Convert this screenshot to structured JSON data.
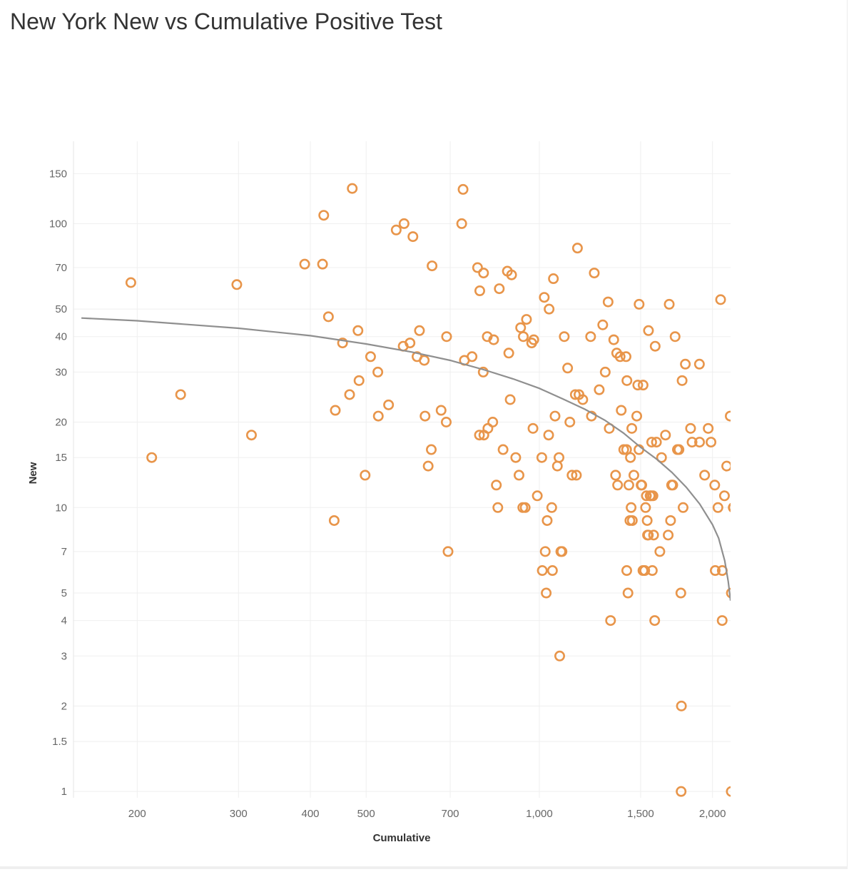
{
  "page": {
    "title": "New York New vs Cumulative Positive Test"
  },
  "chart_data": {
    "type": "scatter",
    "title": "New York New vs Cumulative Positive Test",
    "xlabel": "Cumulative",
    "ylabel": "New",
    "x_scale": "log",
    "y_scale": "log",
    "xlim": [
      155,
      2150
    ],
    "ylim": [
      0.95,
      195
    ],
    "x_ticks": [
      {
        "value": 200,
        "label": "200"
      },
      {
        "value": 300,
        "label": "300"
      },
      {
        "value": 400,
        "label": "400"
      },
      {
        "value": 500,
        "label": "500"
      },
      {
        "value": 700,
        "label": "700"
      },
      {
        "value": 1000,
        "label": "1,000"
      },
      {
        "value": 1500,
        "label": "1,500"
      },
      {
        "value": 2000,
        "label": "2,000"
      }
    ],
    "y_ticks": [
      {
        "value": 1,
        "label": "1"
      },
      {
        "value": 1.5,
        "label": "1.5"
      },
      {
        "value": 2,
        "label": "2"
      },
      {
        "value": 3,
        "label": "3"
      },
      {
        "value": 4,
        "label": "4"
      },
      {
        "value": 5,
        "label": "5"
      },
      {
        "value": 7,
        "label": "7"
      },
      {
        "value": 10,
        "label": "10"
      },
      {
        "value": 15,
        "label": "15"
      },
      {
        "value": 20,
        "label": "20"
      },
      {
        "value": 30,
        "label": "30"
      },
      {
        "value": 40,
        "label": "40"
      },
      {
        "value": 50,
        "label": "50"
      },
      {
        "value": 70,
        "label": "70"
      },
      {
        "value": 100,
        "label": "100"
      },
      {
        "value": 150,
        "label": "150"
      }
    ],
    "grid": true,
    "marker_color": "#e8954a",
    "trend_color": "#8f8f8f",
    "points": [
      [
        195,
        62
      ],
      [
        212,
        15
      ],
      [
        238,
        25
      ],
      [
        298,
        61
      ],
      [
        316,
        18
      ],
      [
        391,
        72
      ],
      [
        420,
        72
      ],
      [
        422,
        107
      ],
      [
        430,
        47
      ],
      [
        440,
        9
      ],
      [
        442,
        22
      ],
      [
        455,
        38
      ],
      [
        468,
        25
      ],
      [
        473,
        133
      ],
      [
        484,
        42
      ],
      [
        486,
        28
      ],
      [
        498,
        13
      ],
      [
        509,
        34
      ],
      [
        524,
        30
      ],
      [
        525,
        21
      ],
      [
        547,
        23
      ],
      [
        564,
        95
      ],
      [
        580,
        37
      ],
      [
        582,
        100
      ],
      [
        596,
        38
      ],
      [
        603,
        90
      ],
      [
        613,
        34
      ],
      [
        619,
        42
      ],
      [
        631,
        33
      ],
      [
        633,
        21
      ],
      [
        641,
        14
      ],
      [
        649,
        16
      ],
      [
        651,
        71
      ],
      [
        675,
        22
      ],
      [
        689,
        20
      ],
      [
        690,
        40
      ],
      [
        694,
        7
      ],
      [
        733,
        100
      ],
      [
        737,
        132
      ],
      [
        741,
        33
      ],
      [
        764,
        34
      ],
      [
        781,
        70
      ],
      [
        787,
        18
      ],
      [
        788,
        58
      ],
      [
        799,
        30
      ],
      [
        800,
        67
      ],
      [
        801,
        18
      ],
      [
        812,
        40
      ],
      [
        814,
        19
      ],
      [
        830,
        20
      ],
      [
        833,
        39
      ],
      [
        842,
        12
      ],
      [
        847,
        10
      ],
      [
        852,
        59
      ],
      [
        865,
        16
      ],
      [
        880,
        68
      ],
      [
        885,
        35
      ],
      [
        890,
        24
      ],
      [
        895,
        66
      ],
      [
        910,
        15
      ],
      [
        922,
        13
      ],
      [
        928,
        43
      ],
      [
        936,
        10
      ],
      [
        938,
        40
      ],
      [
        945,
        10
      ],
      [
        950,
        46
      ],
      [
        970,
        38
      ],
      [
        975,
        19
      ],
      [
        978,
        39
      ],
      [
        992,
        11
      ],
      [
        1010,
        15
      ],
      [
        1012,
        6
      ],
      [
        1020,
        55
      ],
      [
        1024,
        7
      ],
      [
        1028,
        5
      ],
      [
        1032,
        9
      ],
      [
        1038,
        18
      ],
      [
        1040,
        50
      ],
      [
        1051,
        10
      ],
      [
        1054,
        6
      ],
      [
        1058,
        64
      ],
      [
        1065,
        21
      ],
      [
        1075,
        14
      ],
      [
        1082,
        15
      ],
      [
        1085,
        3
      ],
      [
        1090,
        7
      ],
      [
        1095,
        7
      ],
      [
        1105,
        40
      ],
      [
        1120,
        31
      ],
      [
        1130,
        20
      ],
      [
        1140,
        13
      ],
      [
        1155,
        25
      ],
      [
        1160,
        13
      ],
      [
        1165,
        82
      ],
      [
        1172,
        25
      ],
      [
        1190,
        24
      ],
      [
        1228,
        40
      ],
      [
        1232,
        21
      ],
      [
        1246,
        67
      ],
      [
        1271,
        26
      ],
      [
        1289,
        44
      ],
      [
        1302,
        30
      ],
      [
        1317,
        53
      ],
      [
        1323,
        19
      ],
      [
        1330,
        4
      ],
      [
        1347,
        39
      ],
      [
        1357,
        13
      ],
      [
        1363,
        35
      ],
      [
        1368,
        12
      ],
      [
        1382,
        34
      ],
      [
        1388,
        22
      ],
      [
        1402,
        16
      ],
      [
        1415,
        34
      ],
      [
        1418,
        16
      ],
      [
        1419,
        6
      ],
      [
        1420,
        28
      ],
      [
        1426,
        5
      ],
      [
        1431,
        12
      ],
      [
        1437,
        9
      ],
      [
        1440,
        15
      ],
      [
        1444,
        10
      ],
      [
        1448,
        19
      ],
      [
        1451,
        9
      ],
      [
        1460,
        13
      ],
      [
        1477,
        21
      ],
      [
        1483,
        27
      ],
      [
        1490,
        16
      ],
      [
        1491,
        52
      ],
      [
        1503,
        12
      ],
      [
        1507,
        12
      ],
      [
        1514,
        6
      ],
      [
        1515,
        27
      ],
      [
        1525,
        6
      ],
      [
        1530,
        10
      ],
      [
        1535,
        11
      ],
      [
        1540,
        9
      ],
      [
        1542,
        8
      ],
      [
        1547,
        8
      ],
      [
        1548,
        42
      ],
      [
        1558,
        11
      ],
      [
        1564,
        11
      ],
      [
        1568,
        17
      ],
      [
        1572,
        6
      ],
      [
        1576,
        11
      ],
      [
        1580,
        8
      ],
      [
        1587,
        4
      ],
      [
        1590,
        37
      ],
      [
        1598,
        17
      ],
      [
        1620,
        7
      ],
      [
        1631,
        15
      ],
      [
        1657,
        18
      ],
      [
        1675,
        8
      ],
      [
        1682,
        52
      ],
      [
        1691,
        9
      ],
      [
        1698,
        12
      ],
      [
        1706,
        12
      ],
      [
        1722,
        40
      ],
      [
        1738,
        16
      ],
      [
        1749,
        16
      ],
      [
        1762,
        5
      ],
      [
        1764,
        1
      ],
      [
        1766,
        2
      ],
      [
        1771,
        28
      ],
      [
        1778,
        10
      ],
      [
        1794,
        32
      ],
      [
        1832,
        19
      ],
      [
        1843,
        17
      ],
      [
        1898,
        32
      ],
      [
        1899,
        17
      ],
      [
        1938,
        13
      ],
      [
        1966,
        19
      ],
      [
        1988,
        17
      ],
      [
        2018,
        12
      ],
      [
        2022,
        6
      ],
      [
        2044,
        10
      ],
      [
        2066,
        54
      ],
      [
        2079,
        4
      ],
      [
        2080,
        6
      ],
      [
        2098,
        11
      ],
      [
        2117,
        14
      ],
      [
        2147,
        21
      ],
      [
        2156,
        1
      ],
      [
        2157,
        5
      ],
      [
        2173,
        10
      ],
      [
        2176,
        10
      ],
      [
        2198,
        10
      ]
    ],
    "trend_points": [
      [
        160,
        46.5
      ],
      [
        200,
        45.5
      ],
      [
        300,
        42.8
      ],
      [
        400,
        40.3
      ],
      [
        500,
        37.7
      ],
      [
        600,
        35.3
      ],
      [
        700,
        33.0
      ],
      [
        800,
        30.6
      ],
      [
        900,
        28.4
      ],
      [
        1000,
        26.3
      ],
      [
        1100,
        24.1
      ],
      [
        1200,
        22.2
      ],
      [
        1300,
        20.3
      ],
      [
        1400,
        18.3
      ],
      [
        1500,
        16.3
      ],
      [
        1600,
        14.8
      ],
      [
        1700,
        13.3
      ],
      [
        1800,
        11.8
      ],
      [
        1900,
        10.3
      ],
      [
        2000,
        8.7
      ],
      [
        2050,
        7.8
      ],
      [
        2100,
        6.5
      ],
      [
        2130,
        5.5
      ],
      [
        2150,
        4.7
      ]
    ]
  }
}
